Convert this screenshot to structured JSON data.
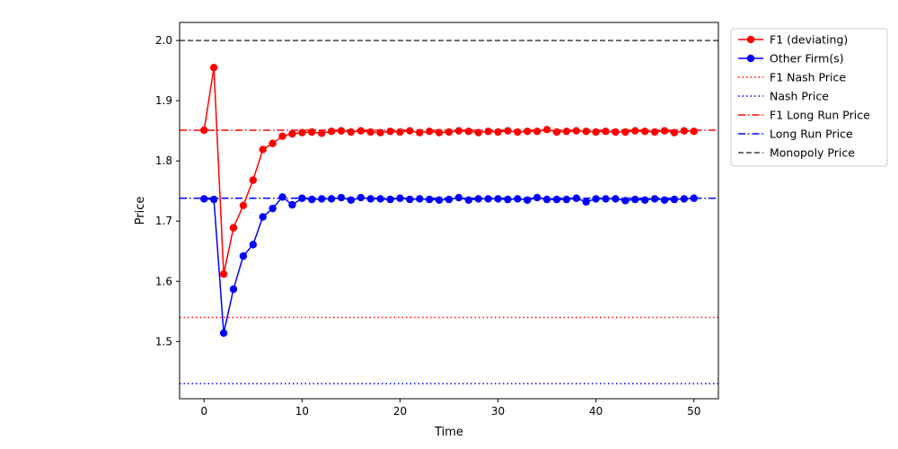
{
  "chart_data": {
    "type": "line",
    "xlabel": "Time",
    "ylabel": "Price",
    "xlim": [
      -2.5,
      52.5
    ],
    "ylim": [
      1.405,
      2.03
    ],
    "x_ticks": [
      0,
      10,
      20,
      30,
      40,
      50
    ],
    "y_ticks": [
      1.5,
      1.6,
      1.7,
      1.8,
      1.9,
      2.0
    ],
    "x_tick_labels": [
      "0",
      "10",
      "20",
      "30",
      "40",
      "50"
    ],
    "y_tick_labels": [
      "1.5",
      "1.6",
      "1.7",
      "1.8",
      "1.9",
      "2.0"
    ],
    "grid": false,
    "legend_position": "outside-top-right",
    "x": [
      0,
      1,
      2,
      3,
      4,
      5,
      6,
      7,
      8,
      9,
      10,
      11,
      12,
      13,
      14,
      15,
      16,
      17,
      18,
      19,
      20,
      21,
      22,
      23,
      24,
      25,
      26,
      27,
      28,
      29,
      30,
      31,
      32,
      33,
      34,
      35,
      36,
      37,
      38,
      39,
      40,
      41,
      42,
      43,
      44,
      45,
      46,
      47,
      48,
      49,
      50
    ],
    "series": [
      {
        "name": "F1 (deviating)",
        "color": "#ff0000",
        "marker": "circle",
        "values": [
          1.851,
          1.955,
          1.612,
          1.689,
          1.726,
          1.768,
          1.819,
          1.829,
          1.841,
          1.845,
          1.847,
          1.848,
          1.846,
          1.849,
          1.85,
          1.848,
          1.85,
          1.848,
          1.847,
          1.849,
          1.848,
          1.85,
          1.847,
          1.849,
          1.847,
          1.848,
          1.85,
          1.849,
          1.847,
          1.849,
          1.848,
          1.85,
          1.848,
          1.849,
          1.849,
          1.852,
          1.848,
          1.849,
          1.85,
          1.849,
          1.848,
          1.849,
          1.848,
          1.848,
          1.85,
          1.849,
          1.848,
          1.85,
          1.847,
          1.85,
          1.849
        ]
      },
      {
        "name": "Other Firm(s)",
        "color": "#0000ff",
        "marker": "circle",
        "values": [
          1.737,
          1.736,
          1.514,
          1.587,
          1.642,
          1.661,
          1.707,
          1.721,
          1.74,
          1.727,
          1.738,
          1.736,
          1.737,
          1.737,
          1.739,
          1.735,
          1.739,
          1.737,
          1.737,
          1.736,
          1.738,
          1.736,
          1.737,
          1.736,
          1.735,
          1.736,
          1.739,
          1.735,
          1.737,
          1.737,
          1.737,
          1.736,
          1.737,
          1.735,
          1.739,
          1.736,
          1.736,
          1.736,
          1.738,
          1.732,
          1.737,
          1.737,
          1.737,
          1.734,
          1.736,
          1.735,
          1.737,
          1.735,
          1.736,
          1.737,
          1.738
        ]
      }
    ],
    "reference_lines": [
      {
        "name": "F1 Nash Price",
        "y": 1.54,
        "color": "#ff0000",
        "style": "dotted"
      },
      {
        "name": "Nash Price",
        "y": 1.43,
        "color": "#0000ff",
        "style": "dotted"
      },
      {
        "name": "F1 Long Run Price",
        "y": 1.851,
        "color": "#ff0000",
        "style": "dashdot"
      },
      {
        "name": "Long Run Price",
        "y": 1.738,
        "color": "#0000ff",
        "style": "dashdot"
      },
      {
        "name": "Monopoly Price",
        "y": 2.0,
        "color": "#404040",
        "style": "dashed"
      }
    ],
    "legend": [
      {
        "label": "F1 (deviating)",
        "color": "#ff0000",
        "style": "solid-marker"
      },
      {
        "label": "Other Firm(s)",
        "color": "#0000ff",
        "style": "solid-marker"
      },
      {
        "label": "F1 Nash Price",
        "color": "#ff0000",
        "style": "dotted"
      },
      {
        "label": "Nash Price",
        "color": "#0000ff",
        "style": "dotted"
      },
      {
        "label": "F1 Long Run Price",
        "color": "#ff0000",
        "style": "dashdot"
      },
      {
        "label": "Long Run Price",
        "color": "#0000ff",
        "style": "dashdot"
      },
      {
        "label": "Monopoly Price",
        "color": "#404040",
        "style": "dashed"
      }
    ]
  }
}
